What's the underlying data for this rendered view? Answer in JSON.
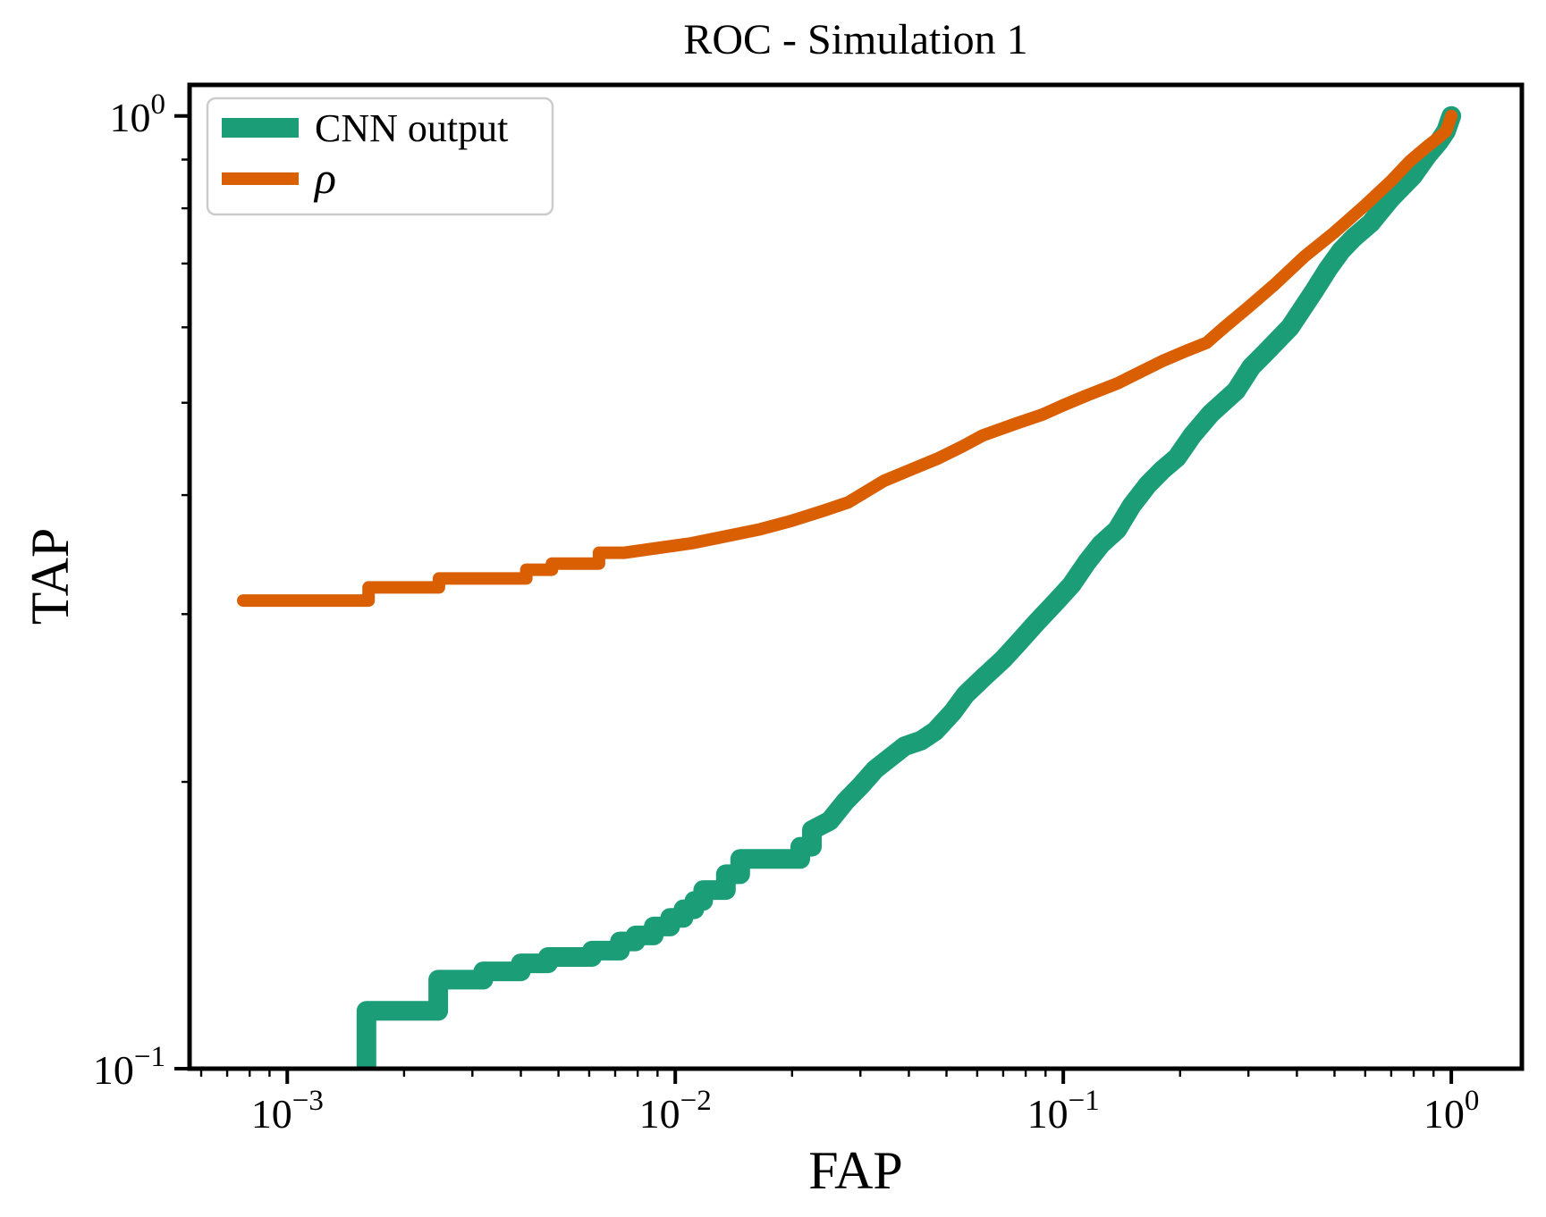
{
  "chart_data": {
    "type": "line",
    "title": "ROC - Simulation 1",
    "xlabel": "FAP",
    "ylabel": "TAP",
    "xscale": "log",
    "yscale": "log",
    "xlim": [
      0.00056,
      1.52
    ],
    "ylim": [
      0.1,
      1.078
    ],
    "grid": false,
    "background": "#ffffff",
    "spine_color": "#000000",
    "x_ticks": [
      {
        "v": 0.001,
        "mantissa": "10",
        "exp": "−3"
      },
      {
        "v": 0.01,
        "mantissa": "10",
        "exp": "−2"
      },
      {
        "v": 0.1,
        "mantissa": "10",
        "exp": "−1"
      },
      {
        "v": 1,
        "mantissa": "10",
        "exp": "0"
      }
    ],
    "y_ticks": [
      {
        "v": 1,
        "mantissa": "10",
        "exp": "0"
      },
      {
        "v": 0.1,
        "mantissa": "10",
        "exp": "−1"
      }
    ],
    "legend": {
      "position": "upper left",
      "entries": [
        {
          "label": "CNN output",
          "color": "#1b9e77",
          "linewidth": 22
        },
        {
          "label": "ρ",
          "color": "#d95f02",
          "linewidth": 14
        }
      ]
    },
    "series": [
      {
        "name": "CNN output",
        "color": "#1b9e77",
        "linewidth": 22,
        "points": [
          [
            0.0016,
            0.1
          ],
          [
            0.0016,
            0.115
          ],
          [
            0.00245,
            0.115
          ],
          [
            0.00245,
            0.124
          ],
          [
            0.0032,
            0.124
          ],
          [
            0.0032,
            0.1265
          ],
          [
            0.004,
            0.1265
          ],
          [
            0.004,
            0.129
          ],
          [
            0.0047,
            0.129
          ],
          [
            0.0047,
            0.131
          ],
          [
            0.0061,
            0.131
          ],
          [
            0.0061,
            0.133
          ],
          [
            0.0072,
            0.133
          ],
          [
            0.0072,
            0.136
          ],
          [
            0.0079,
            0.136
          ],
          [
            0.0079,
            0.138
          ],
          [
            0.0088,
            0.138
          ],
          [
            0.0088,
            0.141
          ],
          [
            0.0097,
            0.141
          ],
          [
            0.0097,
            0.144
          ],
          [
            0.0105,
            0.144
          ],
          [
            0.0105,
            0.147
          ],
          [
            0.0112,
            0.147
          ],
          [
            0.0112,
            0.15
          ],
          [
            0.0118,
            0.15
          ],
          [
            0.0118,
            0.154
          ],
          [
            0.0135,
            0.154
          ],
          [
            0.0135,
            0.16
          ],
          [
            0.0147,
            0.16
          ],
          [
            0.0147,
            0.166
          ],
          [
            0.021,
            0.166
          ],
          [
            0.021,
            0.171
          ],
          [
            0.0225,
            0.171
          ],
          [
            0.0225,
            0.178
          ],
          [
            0.025,
            0.182
          ],
          [
            0.0275,
            0.191
          ],
          [
            0.03,
            0.198
          ],
          [
            0.0327,
            0.206
          ],
          [
            0.039,
            0.218
          ],
          [
            0.043,
            0.221
          ],
          [
            0.0467,
            0.226
          ],
          [
            0.052,
            0.237
          ],
          [
            0.056,
            0.247
          ],
          [
            0.062,
            0.257
          ],
          [
            0.07,
            0.269
          ],
          [
            0.076,
            0.279
          ],
          [
            0.0853,
            0.294
          ],
          [
            0.095,
            0.308
          ],
          [
            0.105,
            0.322
          ],
          [
            0.115,
            0.34
          ],
          [
            0.125,
            0.355
          ],
          [
            0.1377,
            0.368
          ],
          [
            0.15,
            0.39
          ],
          [
            0.165,
            0.41
          ],
          [
            0.18,
            0.425
          ],
          [
            0.1963,
            0.438
          ],
          [
            0.215,
            0.462
          ],
          [
            0.24,
            0.487
          ],
          [
            0.279,
            0.515
          ],
          [
            0.305,
            0.545
          ],
          [
            0.33,
            0.563
          ],
          [
            0.384,
            0.6
          ],
          [
            0.443,
            0.655
          ],
          [
            0.48,
            0.69
          ],
          [
            0.52,
            0.722
          ],
          [
            0.56,
            0.745
          ],
          [
            0.62,
            0.772
          ],
          [
            0.7,
            0.82
          ],
          [
            0.796,
            0.865
          ],
          [
            0.87,
            0.91
          ],
          [
            0.93,
            0.94
          ],
          [
            0.969,
            0.964
          ],
          [
            1.0,
            1.0
          ]
        ]
      },
      {
        "name": "ρ",
        "color": "#d95f02",
        "linewidth": 14,
        "points": [
          [
            0.00077,
            0.31
          ],
          [
            0.00162,
            0.31
          ],
          [
            0.00162,
            0.32
          ],
          [
            0.00246,
            0.32
          ],
          [
            0.00246,
            0.327
          ],
          [
            0.00413,
            0.327
          ],
          [
            0.00413,
            0.334
          ],
          [
            0.00481,
            0.334
          ],
          [
            0.00481,
            0.339
          ],
          [
            0.00636,
            0.339
          ],
          [
            0.00636,
            0.348
          ],
          [
            0.0074,
            0.348
          ],
          [
            0.009,
            0.352
          ],
          [
            0.011,
            0.356
          ],
          [
            0.013,
            0.361
          ],
          [
            0.0164,
            0.368
          ],
          [
            0.02,
            0.376
          ],
          [
            0.024,
            0.385
          ],
          [
            0.0279,
            0.393
          ],
          [
            0.0345,
            0.414
          ],
          [
            0.042,
            0.428
          ],
          [
            0.0475,
            0.437
          ],
          [
            0.055,
            0.45
          ],
          [
            0.062,
            0.462
          ],
          [
            0.075,
            0.475
          ],
          [
            0.0885,
            0.486
          ],
          [
            0.1,
            0.497
          ],
          [
            0.115,
            0.509
          ],
          [
            0.138,
            0.524
          ],
          [
            0.16,
            0.54
          ],
          [
            0.18,
            0.553
          ],
          [
            0.21,
            0.568
          ],
          [
            0.234,
            0.578
          ],
          [
            0.26,
            0.6
          ],
          [
            0.3,
            0.63
          ],
          [
            0.35,
            0.665
          ],
          [
            0.42,
            0.713
          ],
          [
            0.5,
            0.755
          ],
          [
            0.6,
            0.806
          ],
          [
            0.7,
            0.855
          ],
          [
            0.783,
            0.897
          ],
          [
            0.87,
            0.93
          ],
          [
            0.93,
            0.95
          ],
          [
            0.969,
            0.964
          ],
          [
            1.0,
            1.0
          ]
        ]
      }
    ]
  }
}
